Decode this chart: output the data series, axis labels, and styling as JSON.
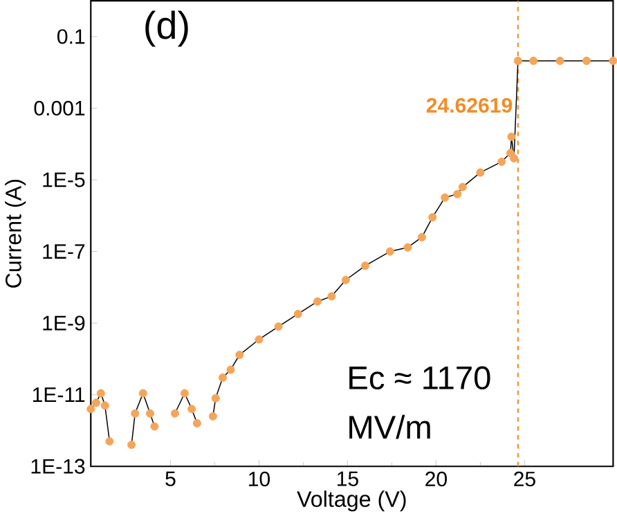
{
  "chart_data": {
    "type": "line",
    "xlabel": "Voltage (V)",
    "ylabel": "Current (A)",
    "annotations": [
      "(d)",
      "Ec ≈ 1170",
      "MV/m"
    ],
    "log": "y",
    "xlim": [
      0.5,
      30
    ],
    "ylim": [
      1e-13,
      1
    ],
    "xticks": [
      5,
      10,
      15,
      20,
      25
    ],
    "yticks": [
      {
        "value": 0.1,
        "label": "0.1"
      },
      {
        "value": 0.001,
        "label": "0.001"
      },
      {
        "value": 1e-05,
        "label": "1E-5"
      },
      {
        "value": 1e-07,
        "label": "1E-7"
      },
      {
        "value": 1e-09,
        "label": "1E-9"
      },
      {
        "value": 1e-11,
        "label": "1E-11"
      },
      {
        "value": 1e-13,
        "label": "1E-13"
      }
    ],
    "marker": "circle",
    "grid": false,
    "ref_lines": [
      {
        "axis": "x",
        "value": 24.62619,
        "label": "24.62619",
        "color": "#f28c28",
        "line_style": "dashed"
      }
    ],
    "series": [
      {
        "color": "#f5a55a",
        "x": [
          0.5,
          0.8,
          1.07,
          1.3,
          1.56,
          2.2,
          2.8,
          3.0,
          3.45,
          3.85,
          4.1,
          4.7,
          5.25,
          5.8,
          6.2,
          6.5,
          7.0,
          7.4,
          7.55,
          7.95,
          8.4,
          8.9,
          10,
          11.1,
          12.2,
          13.3,
          14.1,
          14.9,
          16.0,
          17.4,
          18.4,
          19.2,
          19.8,
          20.5,
          21.2,
          21.5,
          22.5,
          23.7,
          24.2,
          24.26,
          24.4,
          24.62619,
          25.5,
          27,
          28.5,
          30
        ],
        "values": [
          4e-12,
          6e-12,
          1.1e-11,
          5e-12,
          5e-13,
          null,
          4e-13,
          3e-12,
          1.1e-11,
          3e-12,
          1.3e-12,
          null,
          3e-12,
          1.1e-11,
          4e-12,
          1.6e-12,
          null,
          2.5e-12,
          8e-12,
          3e-11,
          5e-11,
          1.3e-10,
          3.5e-10,
          8e-10,
          1.8e-09,
          4e-09,
          5.6e-09,
          1.6e-08,
          4e-08,
          1e-07,
          1.3e-07,
          2.5e-07,
          9e-07,
          3.2e-06,
          4e-06,
          6.3e-06,
          1.6e-05,
          3.2e-05,
          5.6e-05,
          0.00016,
          4e-05,
          0.021,
          0.021,
          0.021,
          0.021,
          0.021
        ]
      }
    ]
  }
}
